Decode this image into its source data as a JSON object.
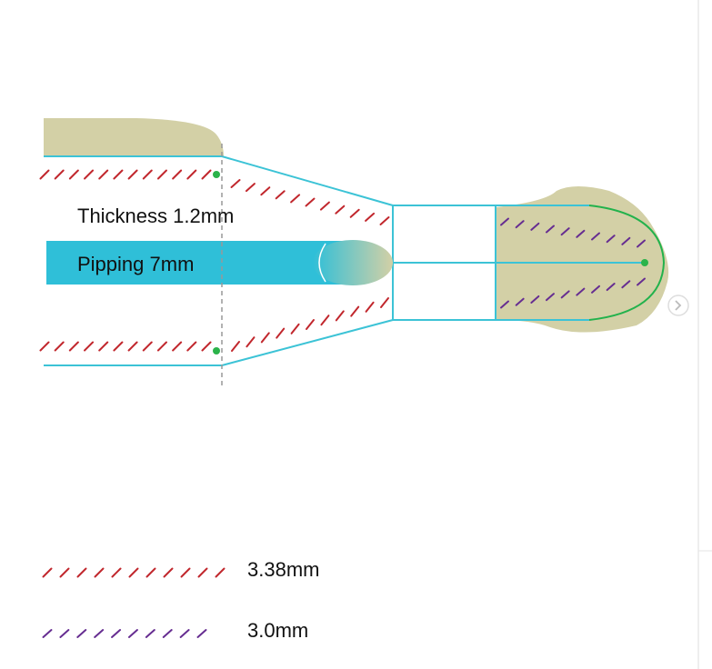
{
  "labels": {
    "thickness": "Thickness 1.2mm",
    "piping": "Pipping 7mm"
  },
  "legend": [
    {
      "text": "3.38mm",
      "color": "#c1272d"
    },
    {
      "text": "3.0mm",
      "color": "#662d91"
    }
  ],
  "nav": {
    "next_icon": "chevron-right-icon"
  },
  "colors": {
    "outline": "#3cc3d6",
    "piping_fill": "#2fbfd8",
    "fabric": "#d3d0a6",
    "dot": "#2bb34a",
    "guide": "#999999",
    "curve": "#22b24c"
  }
}
